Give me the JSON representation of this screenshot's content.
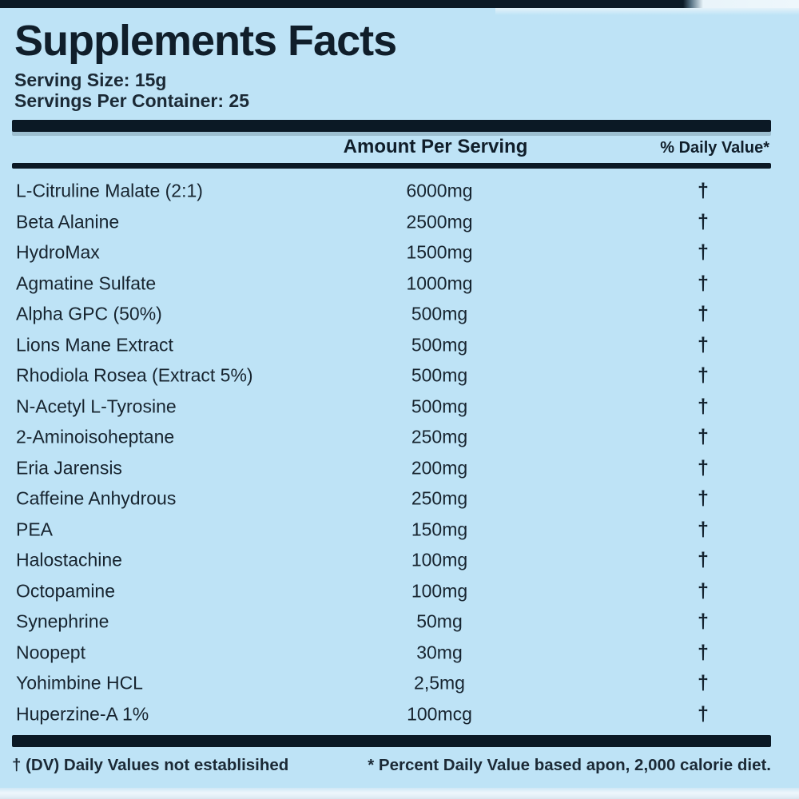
{
  "label": {
    "title": "Supplements Facts",
    "serving_size": "Serving Size: 15g",
    "servings_per_container": "Servings Per Container: 25",
    "columns": {
      "amount_header": "Amount Per Serving",
      "daily_value_header": "% Daily Value*"
    },
    "rows": [
      {
        "name": "L-Citruline Malate (2:1)",
        "amount": "6000mg",
        "dv": "†"
      },
      {
        "name": "Beta Alanine",
        "amount": "2500mg",
        "dv": "†"
      },
      {
        "name": "HydroMax",
        "amount": "1500mg",
        "dv": "†"
      },
      {
        "name": "Agmatine Sulfate",
        "amount": "1000mg",
        "dv": "†"
      },
      {
        "name": "Alpha GPC (50%)",
        "amount": "500mg",
        "dv": "†"
      },
      {
        "name": "Lions Mane Extract",
        "amount": "500mg",
        "dv": "†"
      },
      {
        "name": "Rhodiola Rosea (Extract 5%)",
        "amount": "500mg",
        "dv": "†"
      },
      {
        "name": "N-Acetyl L-Tyrosine",
        "amount": "500mg",
        "dv": "†"
      },
      {
        "name": "2-Aminoisoheptane",
        "amount": "250mg",
        "dv": "†"
      },
      {
        "name": "Eria Jarensis",
        "amount": "200mg",
        "dv": "†"
      },
      {
        "name": "Caffeine Anhydrous",
        "amount": "250mg",
        "dv": "†"
      },
      {
        "name": "PEA",
        "amount": "150mg",
        "dv": "†"
      },
      {
        "name": "Halostachine",
        "amount": "100mg",
        "dv": "†"
      },
      {
        "name": "Octopamine",
        "amount": "100mg",
        "dv": "†"
      },
      {
        "name": "Synephrine",
        "amount": "50mg",
        "dv": "†"
      },
      {
        "name": "Noopept",
        "amount": "30mg",
        "dv": "†"
      },
      {
        "name": "Yohimbine HCL",
        "amount": "2,5mg",
        "dv": "†"
      },
      {
        "name": "Huperzine-A 1%",
        "amount": "100mcg",
        "dv": "†"
      }
    ],
    "footnotes": {
      "left": "† (DV) Daily Values not establisihed",
      "right": "* Percent Daily Value based apon, 2,000 calorie diet."
    },
    "colors": {
      "background": "#bee3f6",
      "text": "#16232e",
      "bar": "#0b1925"
    }
  }
}
